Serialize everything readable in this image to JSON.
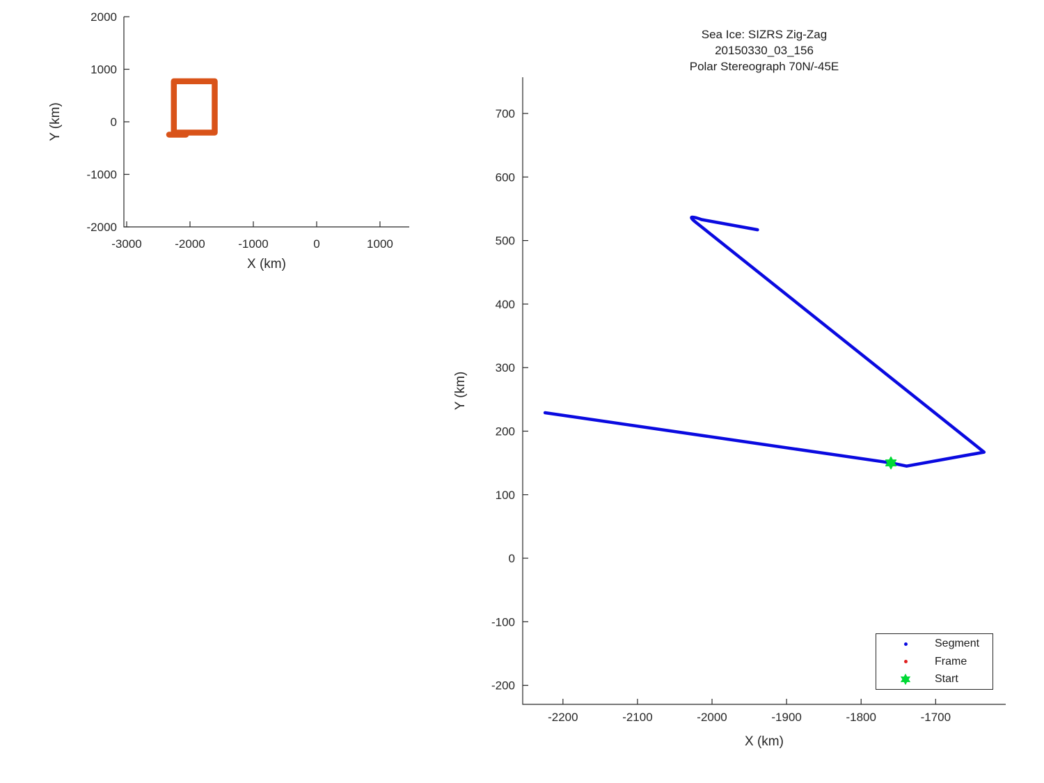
{
  "title": {
    "line1": "Sea Ice: SIZRS Zig-Zag",
    "line2": "20150330_03_156",
    "line3": "Polar Stereograph 70N/-45E"
  },
  "colors": {
    "segment": "#0a0ae0",
    "frame": "#e01f1f",
    "start": "#00d935",
    "coverage_box": "#d95319",
    "axis": "#262626",
    "text": "#1a1a1a"
  },
  "legend": {
    "items": [
      {
        "label": "Segment",
        "marker": "dot",
        "color_key": "segment"
      },
      {
        "label": "Frame",
        "marker": "dot",
        "color_key": "frame"
      },
      {
        "label": "Start",
        "marker": "hexagram",
        "color_key": "start"
      }
    ]
  },
  "chart_data": [
    {
      "id": "overview",
      "type": "line",
      "title": "",
      "xlabel": "X (km)",
      "ylabel": "Y (km)",
      "xlim": [
        -3044,
        1462
      ],
      "ylim": [
        -2000,
        2000
      ],
      "xticks": [
        -3000,
        -2000,
        -1000,
        0,
        1000
      ],
      "yticks": [
        -2000,
        -1000,
        0,
        1000,
        2000
      ],
      "grid": false,
      "legend_position": "none",
      "series": [
        {
          "name": "coverage-box",
          "color_key": "coverage_box",
          "line_width": 8.5,
          "path": [
            [
              "M",
              -2255,
              -205
            ],
            [
              "L",
              -2255,
              772
            ],
            [
              "L",
              -1610,
              772
            ],
            [
              "L",
              -1610,
              -205
            ],
            [
              "L",
              -2255,
              -205
            ]
          ]
        },
        {
          "name": "coverage-box-start-overlap",
          "color_key": "coverage_box",
          "line_width": 8.5,
          "path": [
            [
              "M",
              -2330,
              -245
            ],
            [
              "L",
              -2065,
              -245
            ]
          ]
        }
      ]
    },
    {
      "id": "track",
      "type": "line",
      "title": "Sea Ice: SIZRS Zig-Zag 20150330_03_156 Polar Stereograph 70N/-45E",
      "xlabel": "X (km)",
      "ylabel": "Y (km)",
      "xlim": [
        -2254,
        -1606
      ],
      "ylim": [
        -230,
        757
      ],
      "xticks": [
        -2200,
        -2100,
        -2000,
        -1900,
        -1800,
        -1700
      ],
      "yticks": [
        -200,
        -100,
        0,
        100,
        200,
        300,
        400,
        500,
        600,
        700
      ],
      "grid": false,
      "legend_position": "lower right",
      "series": [
        {
          "name": "segment-track",
          "color_key": "segment",
          "line_width": 4.5,
          "path": [
            [
              "M",
              -2224,
              229
            ],
            [
              "L",
              -1760,
              150
            ],
            [
              "L",
              -1739,
              145
            ],
            [
              "L",
              -1635,
              167
            ],
            [
              "L",
              -2021,
              528
            ],
            [
              "Q",
              -2037,
              543,
              -2014,
              533
            ],
            [
              "L",
              -1939,
              517
            ]
          ]
        }
      ],
      "markers": [
        {
          "name": "start-marker",
          "shape": "hexagram",
          "x": -1760,
          "y": 150,
          "size": 17,
          "color_key": "start"
        }
      ]
    }
  ]
}
